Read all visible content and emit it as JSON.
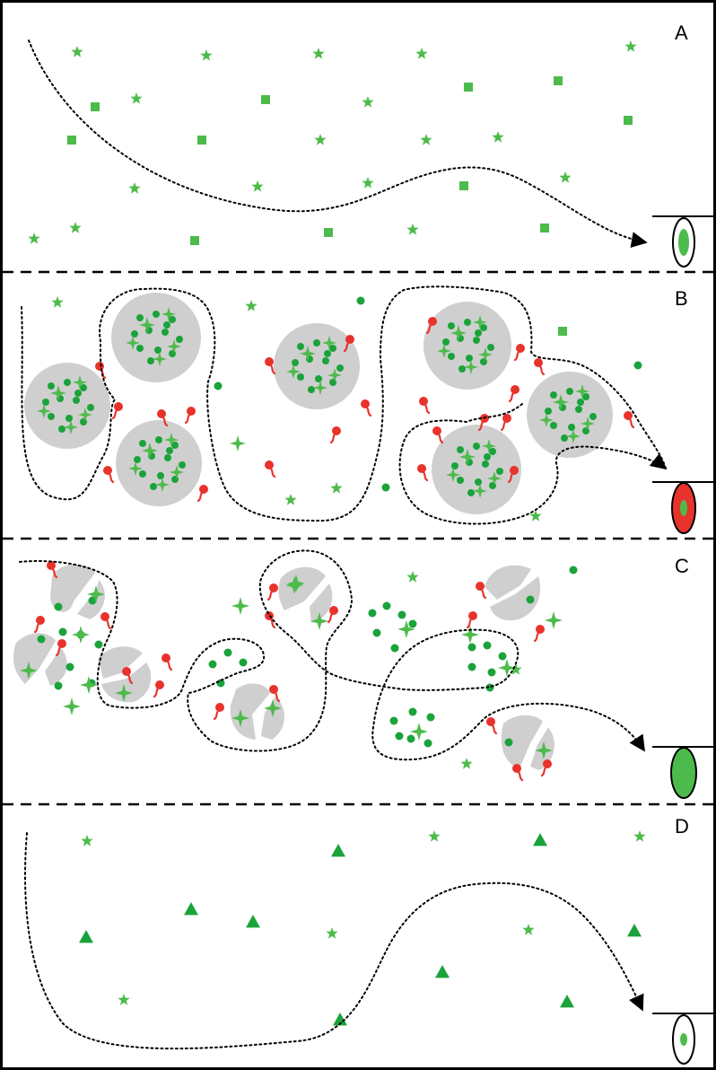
{
  "panels": [
    {
      "id": "A",
      "label": "A"
    },
    {
      "id": "B",
      "label": "B"
    },
    {
      "id": "C",
      "label": "C"
    },
    {
      "id": "D",
      "label": "D"
    }
  ],
  "colors": {
    "green": "#4dbb4b",
    "dark_green": "#1aa33a",
    "red": "#e8322c",
    "grey": "#cfcfcf",
    "black": "#000000"
  },
  "icons": [
    "star-icon",
    "square-icon",
    "dot-icon",
    "sparkle-icon",
    "triangle-icon",
    "tethered-red-molecule-icon",
    "vesicle-icon",
    "receptor-cell-icon"
  ]
}
